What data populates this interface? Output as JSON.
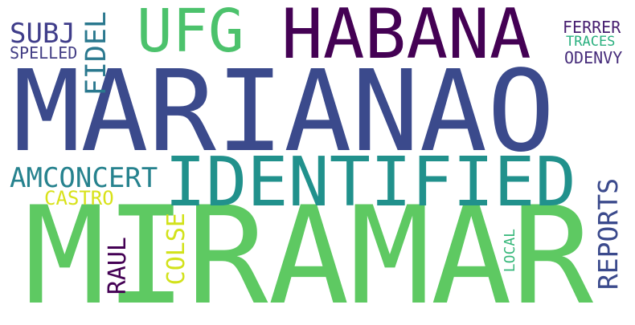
{
  "words": {
    "miramar": {
      "text": "MIRAMAR",
      "color": "#5ec962"
    },
    "marianao": {
      "text": "MARIANAO",
      "color": "#3b4a8c"
    },
    "habana": {
      "text": "HABANA",
      "color": "#440154"
    },
    "identified": {
      "text": "IDENTIFIED",
      "color": "#21918c"
    },
    "ufg": {
      "text": "UFG",
      "color": "#4cc26c"
    },
    "subj": {
      "text": "SUBJ",
      "color": "#3f3d8a"
    },
    "spelled": {
      "text": "SPELLED",
      "color": "#433e85"
    },
    "fidel": {
      "text": "FIDEL",
      "color": "#2a788e"
    },
    "amconcert": {
      "text": "AMCONCERT",
      "color": "#26828e"
    },
    "castro": {
      "text": "CASTRO",
      "color": "#d8e219"
    },
    "raul": {
      "text": "RAUL",
      "color": "#440154"
    },
    "colse": {
      "text": "COLSE",
      "color": "#d2e21b"
    },
    "reports": {
      "text": "REPORTS",
      "color": "#3b4a8c"
    },
    "local": {
      "text": "LOCAL",
      "color": "#35b779"
    },
    "ferrer": {
      "text": "FERRER",
      "color": "#481f70"
    },
    "traces": {
      "text": "TRACES",
      "color": "#2ab07f"
    },
    "odenvy": {
      "text": "ODENVY",
      "color": "#472d7b"
    }
  }
}
